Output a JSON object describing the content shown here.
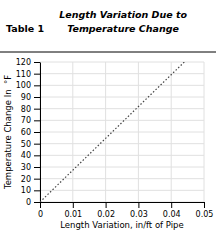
{
  "chart_data": {
    "type": "line",
    "title": [
      "Length Variation Due to",
      "Temperature Change"
    ],
    "annotations": [
      "Table 1"
    ],
    "x_label": "Length Variation, in/ft of Pipe",
    "y_label": "Temperature Change In  °F",
    "x": [
      0,
      0.044
    ],
    "values": [
      0,
      120
    ],
    "color": "#444444",
    "line_style": "dotted",
    "xlim": [
      0,
      0.05
    ],
    "ylim": [
      0,
      120
    ],
    "xticks": [
      0,
      0.01,
      0.02,
      0.03,
      0.04,
      0.05
    ],
    "yticks": [
      0,
      10,
      20,
      30,
      40,
      50,
      60,
      70,
      80,
      90,
      100,
      110,
      120
    ],
    "grid": true
  }
}
